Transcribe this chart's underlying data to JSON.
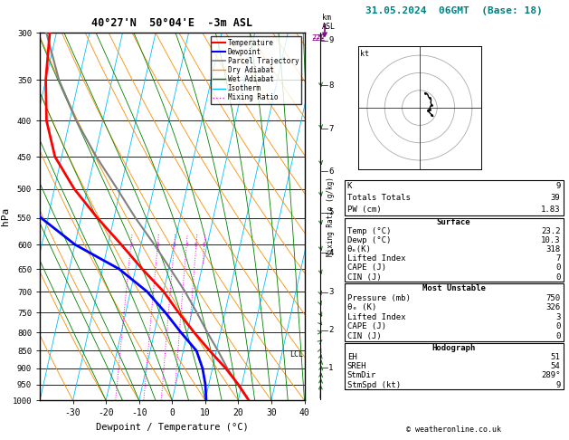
{
  "title_left": "40°27'N  50°04'E  -3m ASL",
  "title_right": "31.05.2024  06GMT  (Base: 18)",
  "xlabel": "Dewpoint / Temperature (°C)",
  "ylabel_left": "hPa",
  "pressure_levels": [
    300,
    350,
    400,
    450,
    500,
    550,
    600,
    650,
    700,
    750,
    800,
    850,
    900,
    950,
    1000
  ],
  "temp_range": [
    -40,
    40
  ],
  "mixing_ratio_values": [
    1,
    2,
    3,
    4,
    5,
    6,
    8,
    10,
    15,
    20,
    25
  ],
  "temp_profile_T": [
    23.2,
    19.0,
    14.0,
    8.0,
    2.0,
    -4.0,
    -10.0,
    -18.0,
    -26.0,
    -35.0,
    -44.0,
    -52.0,
    -57.0,
    -60.0,
    -62.0
  ],
  "temp_profile_P": [
    1000,
    950,
    900,
    850,
    800,
    750,
    700,
    650,
    600,
    550,
    500,
    450,
    400,
    350,
    300
  ],
  "dew_profile_T": [
    10.3,
    9.0,
    7.0,
    4.0,
    -2.0,
    -8.0,
    -15.0,
    -25.0,
    -40.0,
    -52.0,
    -61.0,
    -65.0,
    -67.0,
    -68.0,
    -70.0
  ],
  "dew_profile_P": [
    1000,
    950,
    900,
    850,
    800,
    750,
    700,
    650,
    600,
    550,
    500,
    450,
    400,
    350,
    300
  ],
  "parcel_T": [
    23.2,
    18.8,
    14.5,
    10.5,
    6.0,
    1.5,
    -3.5,
    -9.5,
    -16.0,
    -23.5,
    -31.0,
    -39.5,
    -48.0,
    -56.0,
    -63.0
  ],
  "parcel_P": [
    1000,
    950,
    900,
    850,
    800,
    750,
    700,
    650,
    600,
    550,
    500,
    450,
    400,
    350,
    300
  ],
  "color_temp": "#ff0000",
  "color_dew": "#0000ff",
  "color_parcel": "#808080",
  "color_dry_adiabat": "#ff8c00",
  "color_wet_adiabat": "#008000",
  "color_isotherm": "#00bfff",
  "color_mixing": "#ff00ff",
  "lcl_pressure": 860,
  "km_levels": [
    [
      9,
      "9"
    ],
    [
      8,
      "8"
    ],
    [
      7,
      "7"
    ],
    [
      6,
      "6"
    ],
    [
      5,
      "5"
    ],
    [
      4,
      "4"
    ],
    [
      3,
      "3"
    ],
    [
      2,
      "2"
    ],
    [
      1,
      "1"
    ]
  ],
  "wind_p_levels": [
    1000,
    975,
    950,
    925,
    900,
    875,
    850,
    825,
    800,
    775,
    750,
    725,
    700,
    650,
    600,
    550,
    500,
    450,
    400,
    350,
    300
  ],
  "wind_dirs": [
    200,
    210,
    220,
    225,
    235,
    245,
    255,
    265,
    270,
    278,
    283,
    288,
    290,
    295,
    298,
    300,
    302,
    305,
    305,
    300,
    295
  ],
  "wind_speeds": [
    9,
    9,
    8,
    8,
    8,
    7,
    7,
    6,
    6,
    6,
    5,
    5,
    5,
    6,
    7,
    8,
    9,
    10,
    11,
    12,
    13
  ],
  "stats": {
    "K": 9,
    "Totals_Totals": 39,
    "PW_cm": 1.83,
    "surface_temp": 23.2,
    "surface_dewp": 10.3,
    "surface_theta_e": 318,
    "surface_lifted_index": 7,
    "surface_CAPE": 0,
    "surface_CIN": 0,
    "mu_pressure": 750,
    "mu_theta_e": 326,
    "mu_lifted_index": 3,
    "mu_CAPE": 0,
    "mu_CIN": 0,
    "hodo_EH": 51,
    "hodo_SREH": 54,
    "hodo_StmDir": 289,
    "hodo_StmSpd": 9
  },
  "copyright": "© weatheronline.co.uk"
}
